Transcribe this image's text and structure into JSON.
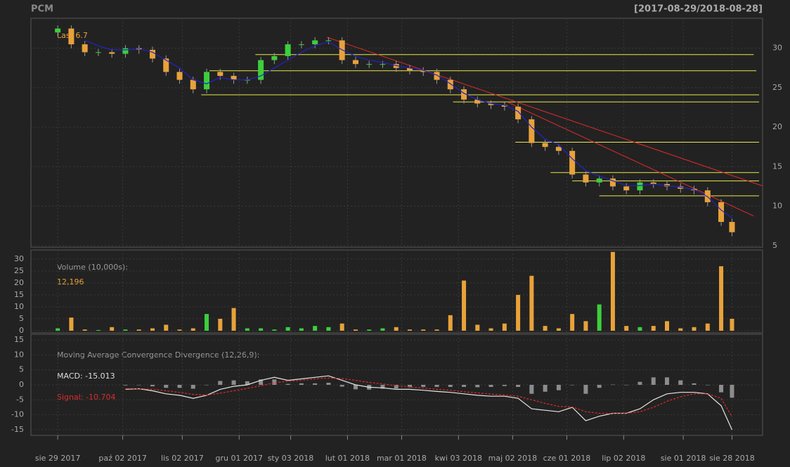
{
  "chart_data": {
    "type": "candlestick",
    "title": "PCM",
    "range_label": "[2017-08-29/2018-08-28]",
    "last_label": "Last 6.7",
    "up_color": "#3ccf3c",
    "down_color": "#e8a23a",
    "ma_color": "#2222cc",
    "hline_color": "#e8e84a",
    "trend_color": "#e02a2a",
    "x": [
      0,
      5,
      10,
      15,
      20,
      25,
      30,
      35,
      40,
      45,
      50,
      55,
      60,
      65,
      70,
      75,
      80,
      85,
      90,
      95,
      100,
      105,
      110,
      115,
      120,
      125,
      130,
      135,
      140,
      145,
      150,
      155,
      160,
      165,
      170,
      175,
      180,
      185,
      190,
      195,
      200,
      205,
      210,
      215,
      220,
      225,
      230,
      235,
      240,
      245,
      249
    ],
    "open": [
      32,
      32.5,
      30.5,
      29.5,
      29.5,
      29.3,
      30,
      29.8,
      28.7,
      27,
      26,
      24.8,
      27,
      26.5,
      26,
      26,
      28.5,
      29,
      30.5,
      30.5,
      31,
      31,
      28.5,
      28,
      28,
      28,
      27.5,
      27.2,
      27,
      26,
      24.8,
      23.5,
      23,
      22.8,
      22.6,
      21,
      18,
      17.5,
      17,
      14,
      13,
      13.5,
      12.5,
      12,
      13,
      12.8,
      12.5,
      12.2,
      12,
      10.5,
      8
    ],
    "high": [
      32.9,
      32.9,
      30.9,
      29.9,
      29.9,
      30.4,
      30.4,
      30.2,
      29.1,
      27.4,
      26.4,
      27.4,
      27.4,
      26.9,
      26.4,
      28.9,
      29.4,
      30.9,
      30.9,
      31.4,
      31.4,
      31.4,
      28.9,
      28.4,
      28.4,
      28.4,
      27.9,
      27.6,
      27.4,
      26.4,
      25.2,
      23.9,
      23.4,
      23.2,
      23,
      21.4,
      18.4,
      17.9,
      17.4,
      14.4,
      13.9,
      13.9,
      12.9,
      13.4,
      13.4,
      13.2,
      12.9,
      12.6,
      12.4,
      10.9,
      8.4
    ],
    "low": [
      31.5,
      30,
      29,
      29,
      28.8,
      28.8,
      29.3,
      28.2,
      26.5,
      25.5,
      24.3,
      24.3,
      26,
      25.5,
      25.5,
      25.5,
      28,
      28.5,
      30,
      30,
      30.5,
      28,
      27.5,
      27.5,
      27.5,
      27,
      26.7,
      26.5,
      25.5,
      24.3,
      23,
      22.5,
      22.3,
      22.1,
      20.5,
      17.5,
      17,
      16.5,
      13.5,
      12.5,
      12.5,
      12,
      11.5,
      11.5,
      12.3,
      12,
      11.7,
      11.5,
      10,
      7.5,
      6.2
    ],
    "close": [
      32.5,
      30.5,
      29.5,
      29.5,
      29.3,
      30,
      29.8,
      28.7,
      27,
      26,
      24.8,
      27,
      26.5,
      26,
      26,
      28.5,
      29,
      30.5,
      30.5,
      31,
      31,
      28.5,
      28,
      28,
      28,
      27.5,
      27.2,
      27,
      26,
      24.8,
      23.5,
      23,
      22.8,
      22.6,
      21,
      18,
      17.5,
      17,
      14,
      13,
      13.5,
      12.5,
      12,
      13,
      12.8,
      12.5,
      12.2,
      12,
      10.5,
      8,
      6.7
    ],
    "ma": [
      null,
      null,
      31,
      30.3,
      29.8,
      29.8,
      29.9,
      29.5,
      28.5,
      27.5,
      26,
      25.5,
      26.3,
      26,
      26,
      26.5,
      27.5,
      28.5,
      29.5,
      30.3,
      30.8,
      29.8,
      29,
      28.5,
      28.2,
      27.8,
      27.5,
      27.2,
      26.6,
      25.5,
      24.3,
      23.5,
      23,
      22.8,
      22,
      20,
      18.5,
      17.8,
      16,
      14.5,
      13.8,
      13.2,
      12.6,
      12.6,
      12.8,
      12.6,
      12.4,
      12.1,
      11.2,
      9.5,
      8.5
    ],
    "hlines": [
      {
        "level": 29.2,
        "from": 73,
        "to": 257
      },
      {
        "level": 27.15,
        "from": 56,
        "to": 258
      },
      {
        "level": 24.1,
        "from": 53,
        "to": 259
      },
      {
        "level": 23.2,
        "from": 146,
        "to": 259
      },
      {
        "level": 18.1,
        "from": 169,
        "to": 259
      },
      {
        "level": 14.25,
        "from": 182,
        "to": 259
      },
      {
        "level": 13.2,
        "from": 190,
        "to": 259
      },
      {
        "level": 11.3,
        "from": 200,
        "to": 259
      }
    ],
    "trendlines": [
      {
        "x": [
          99.4,
          260.3
        ],
        "y": [
          31.4,
          12.56
        ]
      },
      {
        "x": [
          166,
          257
        ],
        "y": [
          23.2,
          8.75
        ]
      }
    ],
    "xlim": [
      -9.9,
      260.3
    ],
    "xticks": [
      {
        "value": 0,
        "label": "sie 29 2017"
      },
      {
        "value": 24,
        "label": "paź 02 2017"
      },
      {
        "value": 46,
        "label": "lis 02 2017"
      },
      {
        "value": 67,
        "label": "gru 01 2017"
      },
      {
        "value": 86,
        "label": "sty 03 2018"
      },
      {
        "value": 107,
        "label": "lut 01 2018"
      },
      {
        "value": 127,
        "label": "mar 01 2018"
      },
      {
        "value": 148,
        "label": "kwi 03 2018"
      },
      {
        "value": 168,
        "label": "maj 02 2018"
      },
      {
        "value": 188,
        "label": "cze 01 2018"
      },
      {
        "value": 209,
        "label": "lip 02 2018"
      },
      {
        "value": 231,
        "label": "sie 01 2018"
      },
      {
        "value": 249,
        "label": "sie 28 2018"
      }
    ],
    "ylim": [
      4.8,
      33.8
    ],
    "yticks": [
      5,
      10,
      15,
      20,
      25,
      30
    ],
    "volume": {
      "label": "Volume (10,000s):",
      "last_label": "12,196",
      "ylim": [
        -0.9,
        33.8
      ],
      "yticks": [
        0,
        5,
        10,
        15,
        20,
        25,
        30
      ],
      "values": [
        1,
        5.5,
        0.5,
        0.3,
        1.5,
        0.5,
        0.5,
        1,
        2.5,
        0.5,
        1,
        7,
        5,
        9.5,
        1,
        1,
        0.5,
        1.5,
        1,
        2,
        1.5,
        3,
        0.5,
        0.5,
        1,
        1.5,
        0.5,
        0.5,
        0.5,
        6.5,
        21,
        2.5,
        1,
        3,
        15,
        23,
        2,
        1,
        7,
        4,
        11,
        33,
        2,
        1.5,
        2,
        4,
        1,
        1.5,
        3,
        27,
        5
      ]
    },
    "macd": {
      "title": "Moving Average Convergence Divergence (12,26,9):",
      "macd_label": "MACD: -15.013",
      "signal_label": "Signal: -10.704",
      "macd_color": "#e6e6e6",
      "signal_color": "#e02a2a",
      "hist_color": "#8c8c8c",
      "ylim": [
        -16.9,
        16.9
      ],
      "yticks": [
        -15,
        -10,
        -5,
        0,
        5,
        10,
        15
      ],
      "macd": [
        null,
        null,
        null,
        null,
        null,
        -1.5,
        -1.3,
        -2,
        -3,
        -3.5,
        -4.5,
        -3.5,
        -1.5,
        -0.5,
        0,
        1.5,
        2.5,
        1.5,
        2,
        2.5,
        3,
        1.5,
        0,
        -0.8,
        -1,
        -1.5,
        -1.5,
        -1.8,
        -2.2,
        -2.5,
        -3,
        -3.5,
        -3.8,
        -3.8,
        -4.5,
        -8,
        -8.5,
        -9,
        -7.5,
        -12,
        -10.5,
        -9.5,
        -9.5,
        -8,
        -5,
        -3,
        -2.5,
        -2.5,
        -3,
        -7,
        -15.013
      ],
      "signal": [
        null,
        null,
        null,
        null,
        null,
        -1.3,
        -1.3,
        -1.5,
        -2,
        -2.5,
        -3.2,
        -3.4,
        -2.8,
        -2,
        -1.2,
        -0.3,
        0.7,
        1.2,
        1.5,
        2,
        2.3,
        2.1,
        1.5,
        0.8,
        0.3,
        -0.3,
        -0.7,
        -1.1,
        -1.5,
        -1.8,
        -2.3,
        -2.7,
        -3.1,
        -3.4,
        -3.8,
        -5,
        -6.2,
        -7.2,
        -7.4,
        -9,
        -9.5,
        -9.6,
        -9.5,
        -9,
        -7.5,
        -5.5,
        -4,
        -3,
        -3,
        -4.5,
        -10.704
      ],
      "histogram": [
        null,
        null,
        null,
        null,
        null,
        -0.2,
        0,
        -0.5,
        -1,
        -1,
        -1.3,
        -0.1,
        1.3,
        1.5,
        1.2,
        1.8,
        1.8,
        0.3,
        0.5,
        0.5,
        0.7,
        -0.6,
        -1.5,
        -1.6,
        -1.3,
        -1.2,
        -0.8,
        -0.7,
        -0.7,
        -0.7,
        -0.7,
        -0.8,
        -0.7,
        -0.4,
        -0.7,
        -3,
        -2.3,
        -1.8,
        -0.1,
        -3,
        -1,
        0.1,
        -0.1,
        1,
        2.5,
        2.5,
        1.5,
        0.5,
        0,
        -2.5,
        -4.3
      ]
    }
  }
}
